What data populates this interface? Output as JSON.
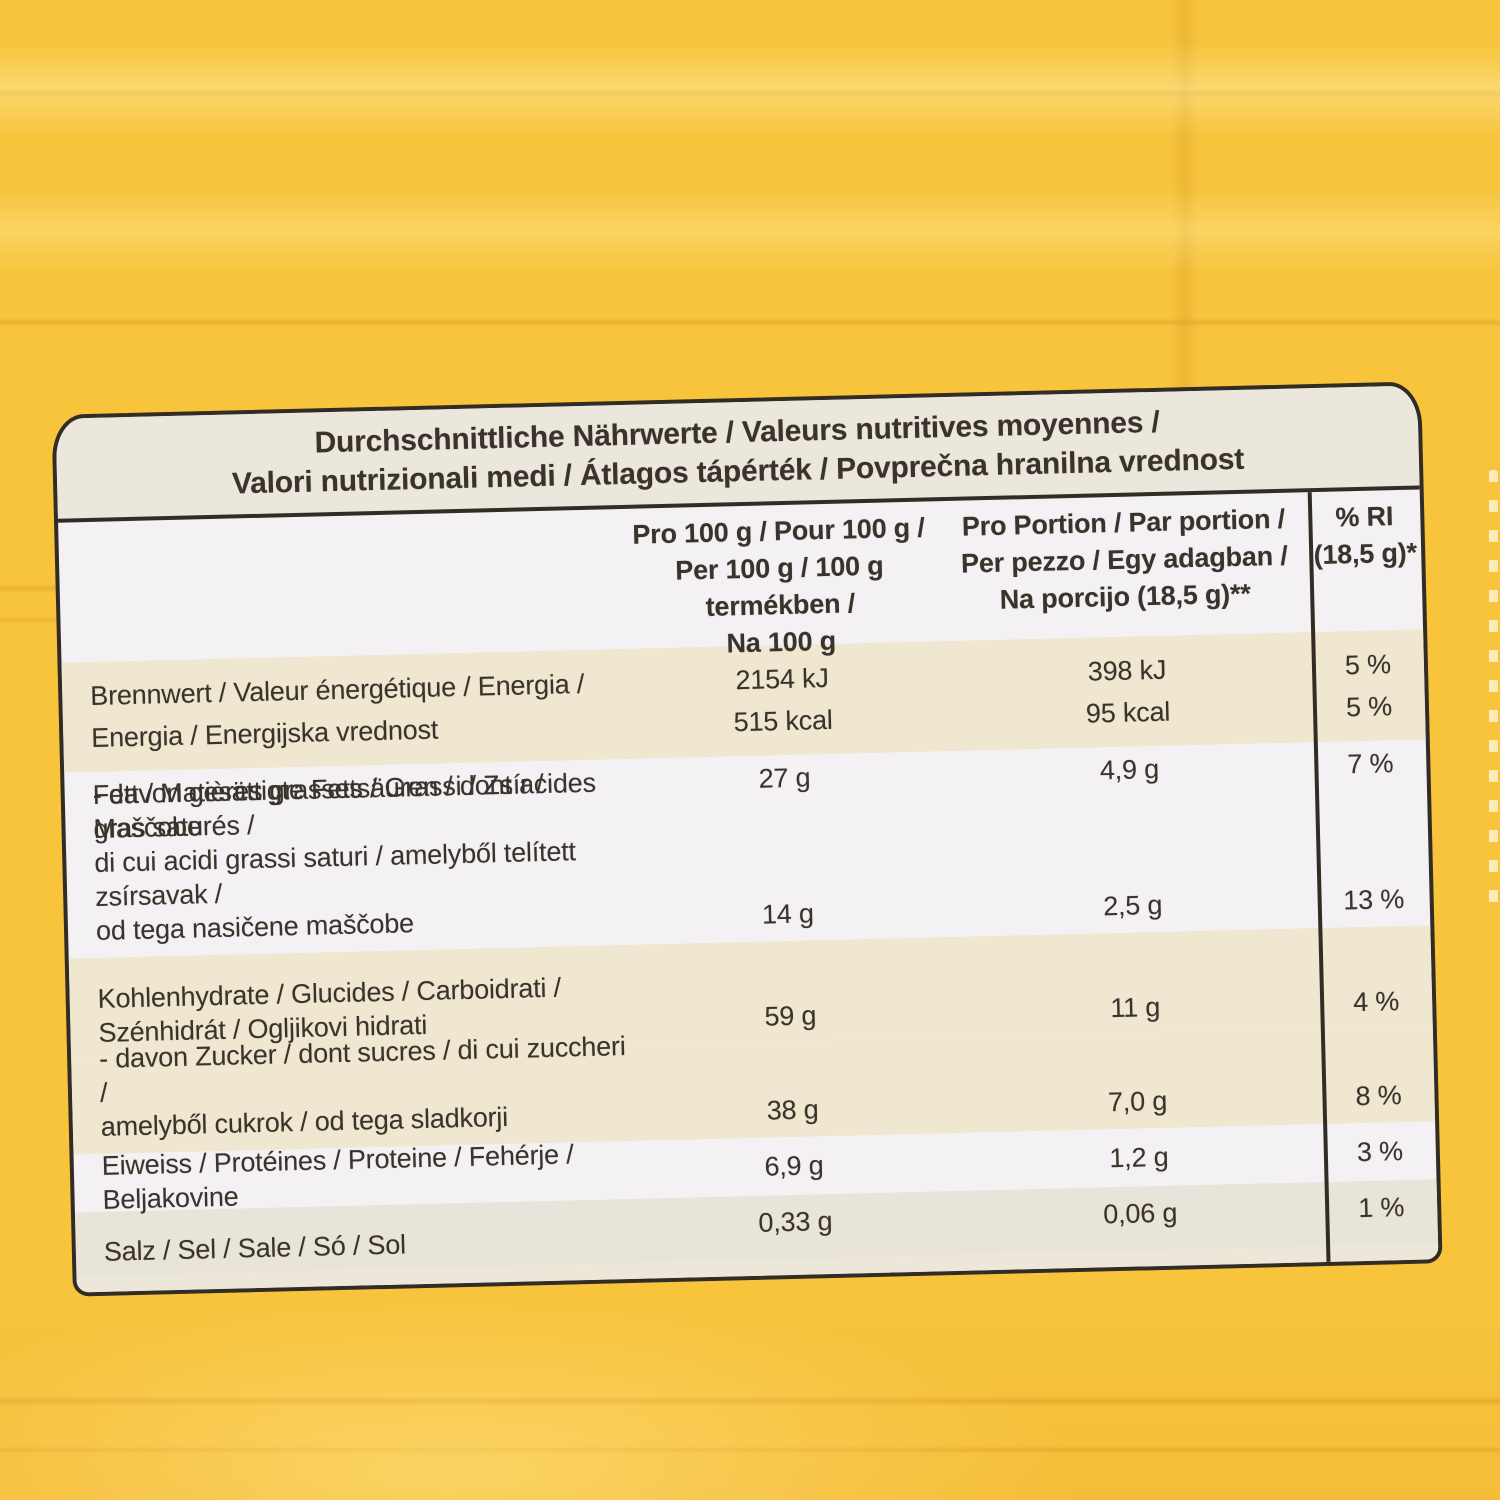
{
  "photo": {
    "pouch_color": "#F7C43C",
    "label_background": "#F3F1F4",
    "label_border_color": "#332C25",
    "title_band_color": "#ECE7DD",
    "row_band_cream": "#EFE7D0",
    "row_band_salt": "#E9E4DA"
  },
  "label": {
    "title_line1": "Durchschnittliche Nährwerte / Valeurs nutritives moyennes /",
    "title_line2": "Valori nutrizionali medi / Átlagos tápérték / Povprečna hranilna vrednost",
    "header": {
      "per100_lines": [
        "Pro 100 g / Pour 100 g /",
        "Per 100 g / 100 g termékben /",
        "Na 100 g"
      ],
      "portion_lines": [
        "Pro Portion / Par portion /",
        "Per pezzo / Egy adagban /",
        "Na porcijo (18,5 g)**"
      ],
      "ri_lines": [
        "% RI",
        "(18,5 g)*"
      ]
    },
    "rows": [
      {
        "label_lines": [
          "Brennwert / Valeur énergétique / Energia /",
          "Energia / Energijska vrednost"
        ],
        "per100_lines": [
          "2154 kJ",
          "515 kcal"
        ],
        "portion_lines": [
          "398 kJ",
          "95 kcal"
        ],
        "ri_lines": [
          "5 %",
          "5 %"
        ]
      },
      {
        "label_lines": [
          "Fett / Matières grasses / Grassi / Zsír / Maščobe"
        ],
        "per100_lines": [
          "27 g"
        ],
        "portion_lines": [
          "4,9 g"
        ],
        "ri_lines": [
          "7 %"
        ]
      },
      {
        "label_lines": [
          "- davon gesättigte Fettsäuren / dont acides gras saturés /",
          "di cui acidi grassi saturi / amelyből telített zsírsavak /",
          "od tega nasičene maščobe"
        ],
        "per100_lines": [
          "14 g"
        ],
        "portion_lines": [
          "2,5 g"
        ],
        "ri_lines": [
          "13 %"
        ]
      },
      {
        "label_lines": [
          "Kohlenhydrate / Glucides / Carboidrati /",
          "Szénhidrát / Ogljikovi hidrati"
        ],
        "per100_lines": [
          "59 g"
        ],
        "portion_lines": [
          "11 g"
        ],
        "ri_lines": [
          "4 %"
        ]
      },
      {
        "label_lines": [
          "- davon Zucker / dont sucres / di cui zuccheri /",
          "amelyből cukrok / od tega sladkorji"
        ],
        "per100_lines": [
          "38 g"
        ],
        "portion_lines": [
          "7,0 g"
        ],
        "ri_lines": [
          "8 %"
        ]
      },
      {
        "label_lines": [
          "Eiweiss / Protéines / Proteine / Fehérje / Beljakovine"
        ],
        "per100_lines": [
          "6,9 g"
        ],
        "portion_lines": [
          "1,2 g"
        ],
        "ri_lines": [
          "3 %"
        ]
      },
      {
        "label_lines": [
          "Salz / Sel / Sale / Só / Sol"
        ],
        "per100_lines": [
          "0,33 g"
        ],
        "portion_lines": [
          "0,06 g"
        ],
        "ri_lines": [
          "1 %"
        ]
      }
    ]
  }
}
